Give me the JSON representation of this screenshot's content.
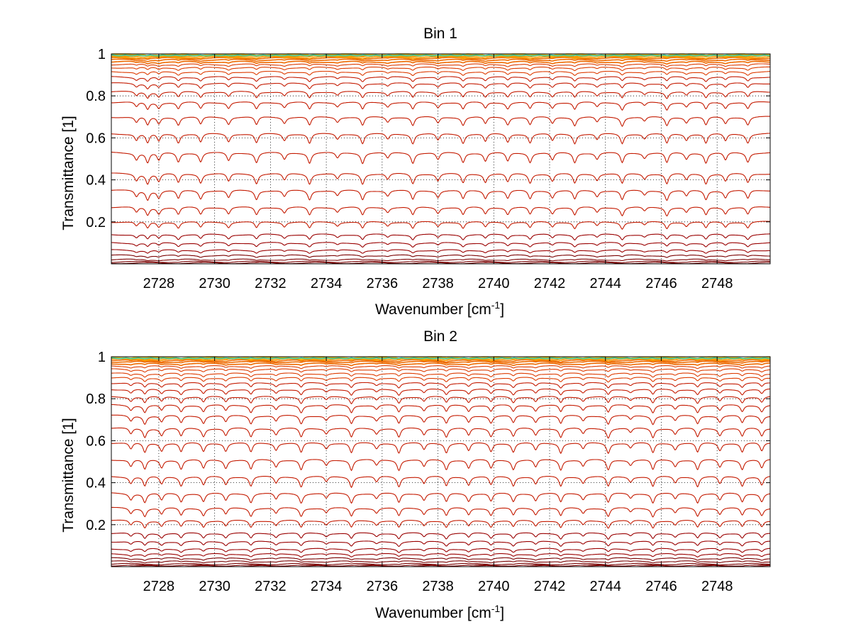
{
  "figure": {
    "background": "#ffffff"
  },
  "chart_data": [
    {
      "type": "line",
      "title": "Bin 1",
      "xlabel": "Wavenumber [cm",
      "xlabel_sup": "-1",
      "xlabel_suffix": "]",
      "ylabel": "Transmittance [1]",
      "xlim": [
        2726.3,
        2749.9
      ],
      "ylim": [
        0.0,
        1.0
      ],
      "xticks": [
        2728,
        2730,
        2732,
        2734,
        2736,
        2738,
        2740,
        2742,
        2744,
        2746,
        2748
      ],
      "xtick_labels": [
        "2728",
        "2730",
        "2732",
        "2734",
        "2736",
        "2738",
        "2740",
        "2742",
        "2744",
        "2746",
        "2748"
      ],
      "yticks": [
        0.2,
        0.4,
        0.6,
        0.8,
        1
      ],
      "ytick_labels": [
        "0.2",
        "0.4",
        "0.6",
        "0.8",
        "1"
      ],
      "grid": "dotted",
      "series_note": "family of transmittance spectra with absorption-line dips; baselines listed below",
      "baselines": [
        1.0,
        0.998,
        0.996,
        0.993,
        0.99,
        0.985,
        0.98,
        0.972,
        0.962,
        0.95,
        0.935,
        0.915,
        0.89,
        0.86,
        0.82,
        0.77,
        0.7,
        0.62,
        0.53,
        0.43,
        0.35,
        0.27,
        0.2,
        0.14,
        0.1,
        0.065,
        0.04,
        0.02,
        0.01,
        0.004
      ],
      "line_positions": [
        2727.2,
        2727.6,
        2728.0,
        2728.7,
        2729.5,
        2730.5,
        2731.5,
        2732.5,
        2733.4,
        2734.4,
        2735.3,
        2736.2,
        2737.1,
        2738.0,
        2738.9,
        2739.7,
        2740.5,
        2741.3,
        2742.1,
        2742.9,
        2743.7,
        2744.6,
        2745.4,
        2746.2,
        2746.9,
        2747.6,
        2748.3,
        2749.1
      ]
    },
    {
      "type": "line",
      "title": "Bin 2",
      "xlabel": "Wavenumber [cm",
      "xlabel_sup": "-1",
      "xlabel_suffix": "]",
      "ylabel": "Transmittance [1]",
      "xlim": [
        2726.3,
        2749.9
      ],
      "ylim": [
        0.0,
        1.0
      ],
      "xticks": [
        2728,
        2730,
        2732,
        2734,
        2736,
        2738,
        2740,
        2742,
        2744,
        2746,
        2748
      ],
      "xtick_labels": [
        "2728",
        "2730",
        "2732",
        "2734",
        "2736",
        "2738",
        "2740",
        "2742",
        "2744",
        "2746",
        "2748"
      ],
      "yticks": [
        0.2,
        0.4,
        0.6,
        0.8,
        1
      ],
      "ytick_labels": [
        "0.2",
        "0.4",
        "0.6",
        "0.8",
        "1"
      ],
      "grid": "dotted",
      "series_note": "family of transmittance spectra with absorption-line dips; baselines listed below",
      "baselines": [
        1.0,
        0.998,
        0.995,
        0.992,
        0.988,
        0.983,
        0.976,
        0.967,
        0.955,
        0.94,
        0.92,
        0.9,
        0.875,
        0.845,
        0.81,
        0.77,
        0.72,
        0.66,
        0.59,
        0.51,
        0.43,
        0.35,
        0.28,
        0.22,
        0.16,
        0.12,
        0.085,
        0.06,
        0.04,
        0.025,
        0.013,
        0.006,
        0.002
      ],
      "line_positions": [
        2727.0,
        2727.5,
        2728.1,
        2728.8,
        2729.6,
        2730.4,
        2731.3,
        2732.2,
        2733.1,
        2734.0,
        2734.9,
        2735.8,
        2736.6,
        2737.5,
        2738.3,
        2739.1,
        2739.9,
        2740.7,
        2741.5,
        2742.4,
        2743.2,
        2744.1,
        2744.9,
        2745.7,
        2746.5,
        2747.3,
        2748.1,
        2748.9,
        2749.6
      ]
    }
  ]
}
